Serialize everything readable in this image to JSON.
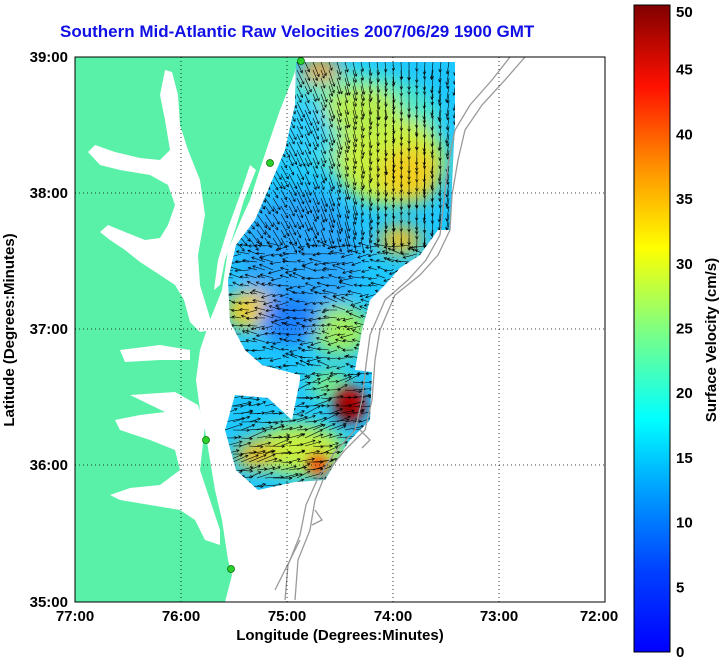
{
  "title": "Southern Mid-Atlantic Raw Velocities 2007/06/29 1900 GMT",
  "x_axis": {
    "label": "Longitude (Degrees:Minutes)",
    "ticks": [
      "77:00",
      "76:00",
      "75:00",
      "74:00",
      "73:00",
      "72:00"
    ]
  },
  "y_axis": {
    "label": "Latitude (Degrees:Minutes)",
    "ticks": [
      "39:00",
      "38:00",
      "37:00",
      "36:00",
      "35:00"
    ]
  },
  "colorbar": {
    "label": "Surface Velocity (cm/s)",
    "ticks": [
      "50",
      "45",
      "40",
      "35",
      "30",
      "25",
      "20",
      "15",
      "10",
      "5",
      "0"
    ],
    "min": 0,
    "max": 50,
    "colormap": "jet"
  },
  "colors": {
    "land": "#59f0a8",
    "title": "#1010e6",
    "bathymetry": "#9a9a9a",
    "arrows": "#000000",
    "stations": "#2bd12b"
  },
  "chart_data": {
    "type": "heatmap",
    "description_of_field": "Surface current speed (cm/s) with vector arrows",
    "lon_range": [
      -77.0,
      -72.0
    ],
    "lat_range": [
      35.0,
      39.0
    ],
    "grid": "dotted",
    "speed_hotspots": [
      {
        "lon": -74.4,
        "lat": 36.45,
        "speed": 48
      },
      {
        "lon": -74.0,
        "lat": 38.2,
        "speed": 30
      },
      {
        "lon": -74.5,
        "lat": 38.45,
        "speed": 27
      },
      {
        "lon": -73.9,
        "lat": 37.7,
        "speed": 28
      },
      {
        "lon": -75.3,
        "lat": 37.2,
        "speed": 27
      },
      {
        "lon": -74.6,
        "lat": 36.0,
        "speed": 30
      },
      {
        "lon": -75.2,
        "lat": 36.2,
        "speed": 24
      },
      {
        "lon": -74.3,
        "lat": 37.0,
        "speed": 22
      }
    ]
  }
}
